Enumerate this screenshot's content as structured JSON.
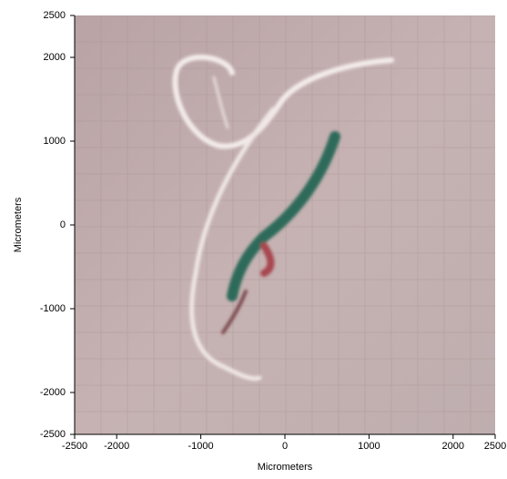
{
  "chart_data": {
    "type": "image",
    "xlabel": "Micrometers",
    "ylabel": "Micrometers",
    "xlim": [
      -2500,
      2500
    ],
    "ylim": [
      -2500,
      2500
    ],
    "xticks": [
      -2500,
      -2000,
      -1000,
      0,
      1000,
      2000,
      2500
    ],
    "yticks": [
      -2500,
      -2000,
      -1000,
      0,
      1000,
      2000,
      2500
    ]
  }
}
